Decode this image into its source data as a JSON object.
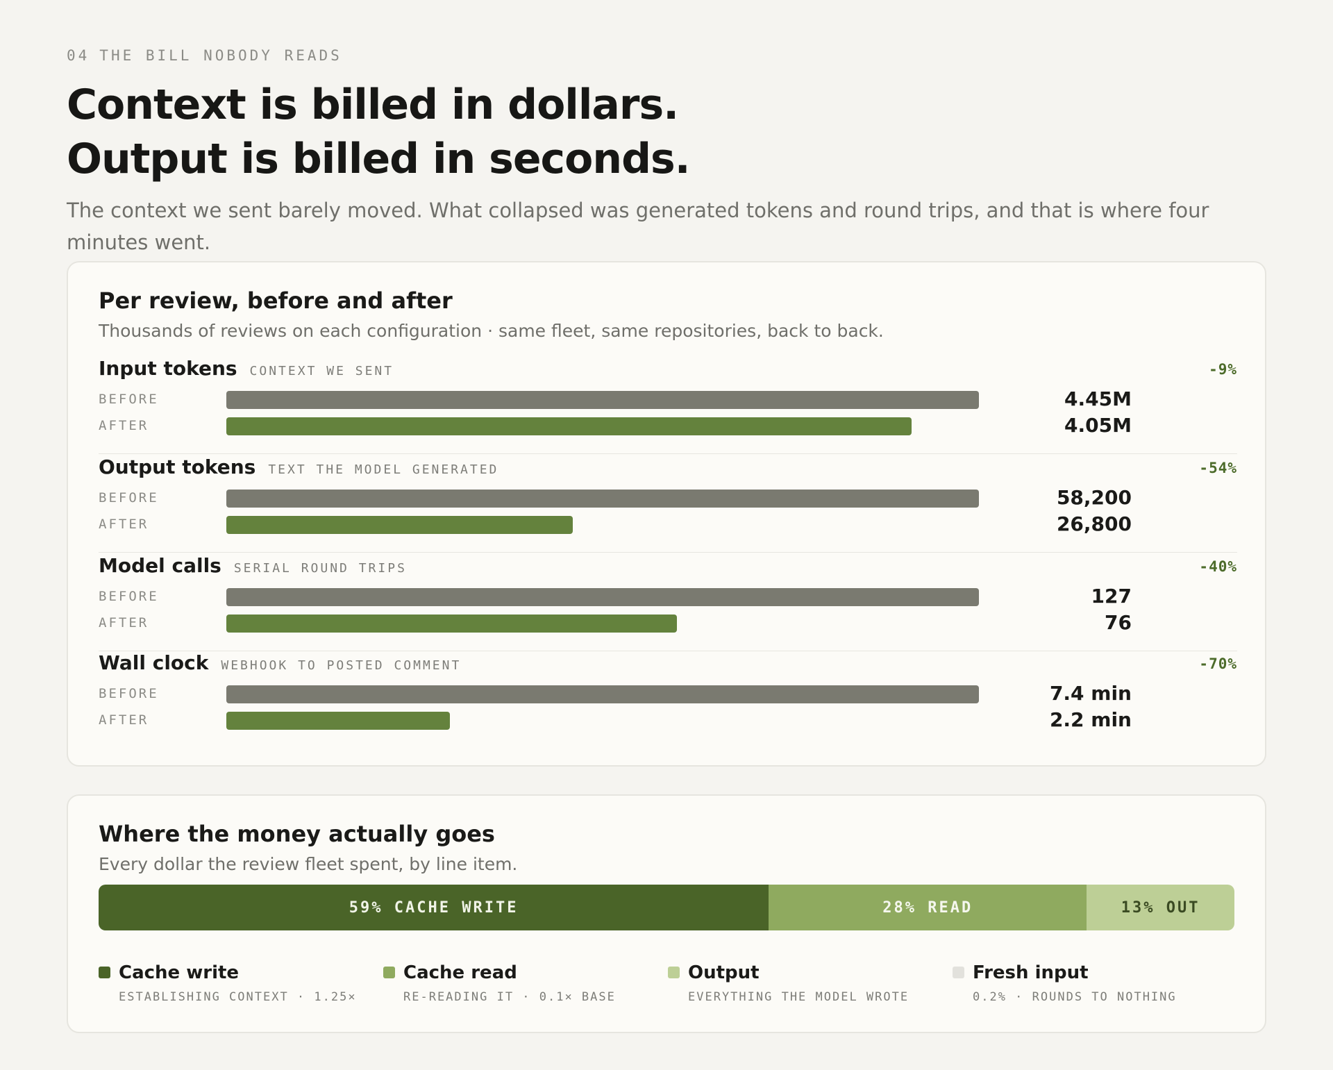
{
  "eyebrow": {
    "number": "04",
    "text": "THE BILL NOBODY READS"
  },
  "headline": {
    "line1": "Context is billed in dollars.",
    "line2": "Output is billed in seconds."
  },
  "lede": "The context we sent barely moved. What collapsed was generated tokens and round trips, and that is where four minutes went.",
  "colors": {
    "before_bar": "#7a7a70",
    "after_bar": "#64823d",
    "delta_text": "#4c6b2a",
    "cache_write": "#4a6428",
    "cache_read": "#8faa5f",
    "output": "#bdcf96",
    "fresh_input": "#e2e1dc"
  },
  "chart_data": [
    {
      "type": "bar",
      "title": "Per review, before and after",
      "subtitle": "Thousands of reviews on each configuration · same fleet, same repositories, back to back.",
      "row_labels": {
        "before": "BEFORE",
        "after": "AFTER"
      },
      "metrics": [
        {
          "name": "Input tokens",
          "tag": "CONTEXT WE SENT",
          "delta": "-9%",
          "before": 4450000,
          "after": 4050000,
          "before_label": "4.45M",
          "after_label": "4.05M"
        },
        {
          "name": "Output tokens",
          "tag": "TEXT THE MODEL GENERATED",
          "delta": "-54%",
          "before": 58200,
          "after": 26800,
          "before_label": "58,200",
          "after_label": "26,800"
        },
        {
          "name": "Model calls",
          "tag": "SERIAL ROUND TRIPS",
          "delta": "-40%",
          "before": 127,
          "after": 76,
          "before_label": "127",
          "after_label": "76"
        },
        {
          "name": "Wall clock",
          "tag": "WEBHOOK TO POSTED COMMENT",
          "delta": "-70%",
          "before": 7.4,
          "after": 2.2,
          "before_label": "7.4 min",
          "after_label": "2.2 min"
        }
      ]
    },
    {
      "type": "bar",
      "title": "Where the money actually goes",
      "subtitle": "Every dollar the review fleet spent, by line item.",
      "segments": [
        {
          "label": "59% CACHE WRITE",
          "value": 59,
          "color_key": "cache_write",
          "text_color": "#f1f4e8"
        },
        {
          "label": "28% READ",
          "value": 28,
          "color_key": "cache_read",
          "text_color": "#f5f7ee"
        },
        {
          "label": "13% OUT",
          "value": 13,
          "color_key": "output",
          "text_color": "#3a4a22"
        }
      ],
      "legend": [
        {
          "name": "Cache write",
          "desc": "ESTABLISHING CONTEXT · 1.25×",
          "color_key": "cache_write"
        },
        {
          "name": "Cache read",
          "desc": "RE-READING IT · 0.1× BASE",
          "color_key": "cache_read"
        },
        {
          "name": "Output",
          "desc": "EVERYTHING THE MODEL WROTE",
          "color_key": "output"
        },
        {
          "name": "Fresh input",
          "desc": "0.2% · ROUNDS TO NOTHING",
          "color_key": "fresh_input"
        }
      ]
    }
  ]
}
